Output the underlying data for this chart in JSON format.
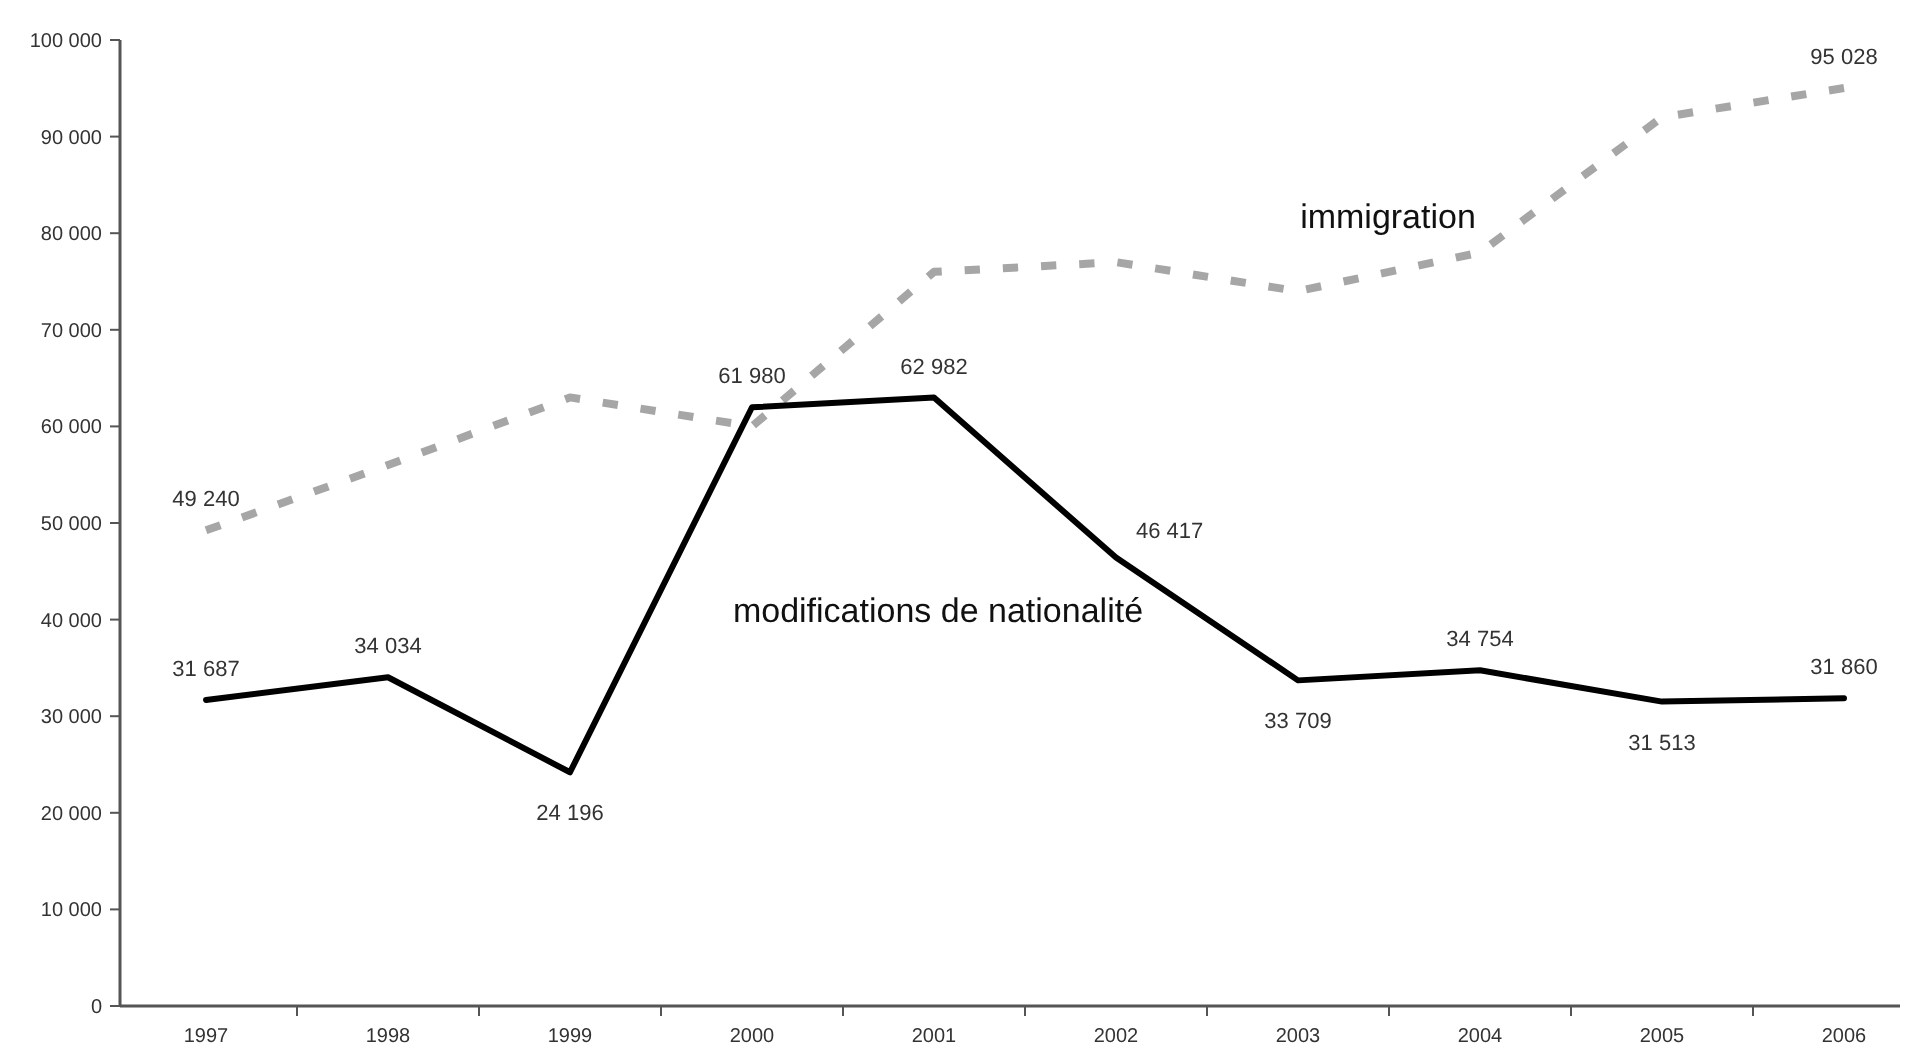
{
  "chart_data": {
    "type": "line",
    "categories": [
      "1997",
      "1998",
      "1999",
      "2000",
      "2001",
      "2002",
      "2003",
      "2004",
      "2005",
      "2006"
    ],
    "ylim": [
      0,
      100000
    ],
    "yticks": [
      0,
      {
        "value": 10000,
        "label": "10 000"
      },
      {
        "value": 20000,
        "label": "20 000"
      },
      {
        "value": 30000,
        "label": "30 000"
      },
      {
        "value": 40000,
        "label": "40 000"
      },
      {
        "value": 50000,
        "label": "50 000"
      },
      {
        "value": 60000,
        "label": "60 000"
      },
      {
        "value": 70000,
        "label": "70 000"
      },
      {
        "value": 80000,
        "label": "80 000"
      },
      {
        "value": 90000,
        "label": "90 000"
      },
      {
        "value": 100000,
        "label": "100 000"
      }
    ],
    "series": [
      {
        "name": "immigration",
        "color": "#a6a6a6",
        "line_style": "dashed",
        "values": [
          49240,
          56000,
          63000,
          60000,
          76000,
          77000,
          74000,
          78000,
          92000,
          95028
        ],
        "value_labels": [
          "49 240",
          null,
          null,
          null,
          null,
          null,
          null,
          null,
          null,
          "95 028"
        ]
      },
      {
        "name": "modifications de nationalité",
        "color": "#000000",
        "line_style": "solid",
        "values": [
          31687,
          34034,
          24196,
          61980,
          62982,
          46417,
          33709,
          34754,
          31513,
          31860
        ],
        "value_labels": [
          "31 687",
          "34 034",
          "24 196",
          "61 980",
          "62 982",
          "46 417",
          "33 709",
          "34 754",
          "31 513",
          "31 860"
        ]
      }
    ],
    "grid": false,
    "marker": "none"
  }
}
